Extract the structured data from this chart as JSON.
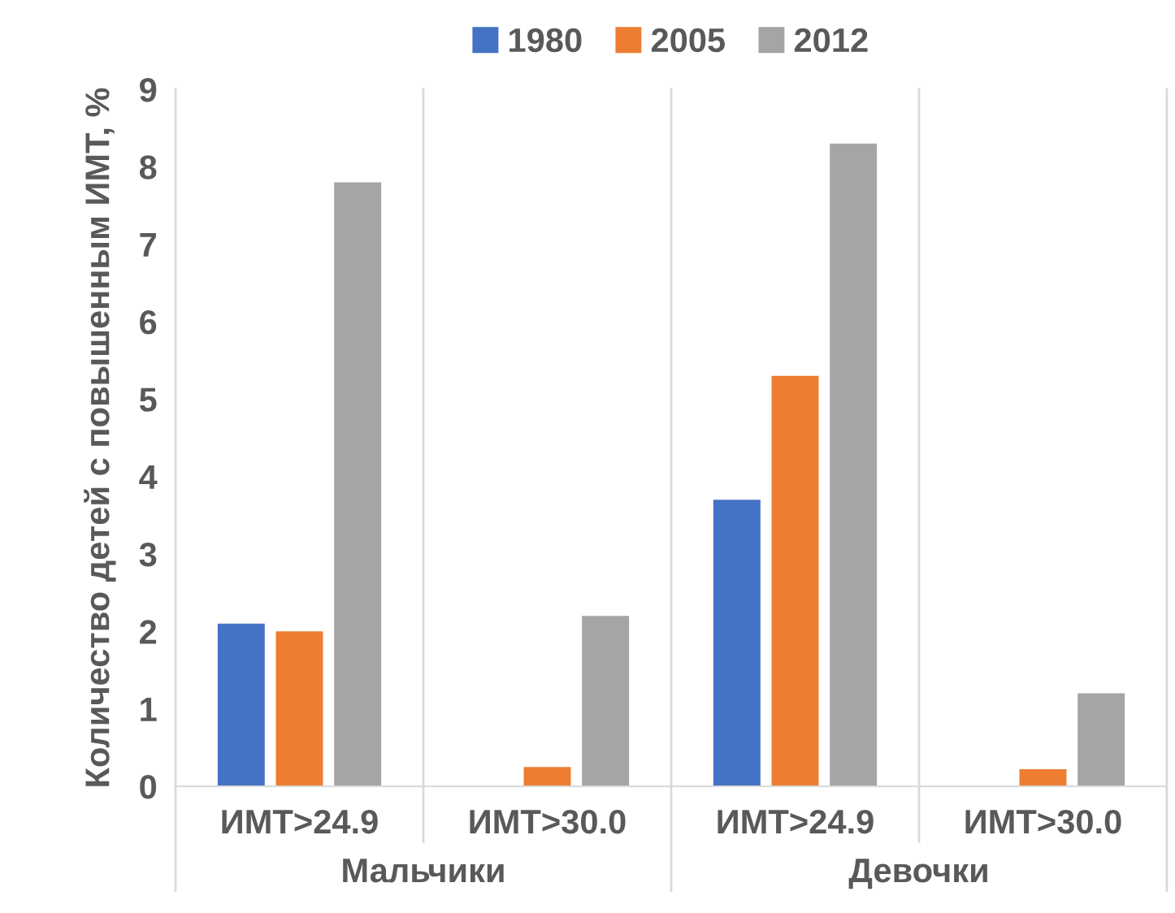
{
  "chart_data": {
    "type": "bar",
    "ylabel": "Количество детей с повышенным ИМТ, %",
    "categories": [
      "ИМТ>24.9",
      "ИМТ>30.0",
      "ИМТ>24.9",
      "ИМТ>30.0"
    ],
    "series": [
      {
        "name": "1980",
        "color": "#4472c4",
        "values": [
          2.1,
          null,
          3.7,
          null
        ]
      },
      {
        "name": "2005",
        "color": "#ed7d31",
        "values": [
          2.0,
          0.25,
          5.3,
          0.22
        ]
      },
      {
        "name": "2012",
        "color": "#a5a5a5",
        "values": [
          7.8,
          2.2,
          8.3,
          1.2
        ]
      }
    ],
    "annotations": [
      "Мальчики",
      "Девочки"
    ],
    "ylim": [
      0,
      9
    ],
    "yticks": [
      0,
      1,
      2,
      3,
      4,
      5,
      6,
      7,
      8,
      9
    ],
    "grid": false,
    "legend": "top"
  }
}
